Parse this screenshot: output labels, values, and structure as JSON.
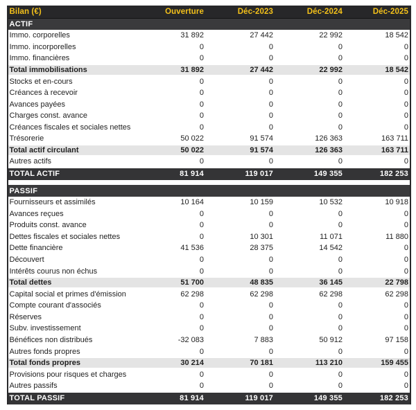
{
  "table": {
    "title": "Bilan (€)",
    "columns": [
      "Ouverture",
      "Déc-2023",
      "Déc-2024",
      "Déc-2025"
    ],
    "colors": {
      "header_bg": "#272729",
      "header_text": "#f3c01a",
      "section_bg": "#3a3a3c",
      "subtotal_bg": "#e4e4e4",
      "grand_total_bg": "#343436",
      "body_text": "#212121"
    },
    "sections": [
      {
        "name": "ACTIF",
        "rows": [
          {
            "kind": "data",
            "label": "Immo. corporelles",
            "values": [
              "31 892",
              "27 442",
              "22 992",
              "18 542"
            ]
          },
          {
            "kind": "data",
            "label": "Immo. incorporelles",
            "values": [
              "0",
              "0",
              "0",
              "0"
            ]
          },
          {
            "kind": "data",
            "label": "Immo. financières",
            "values": [
              "0",
              "0",
              "0",
              "0"
            ]
          },
          {
            "kind": "subtotal",
            "label": "Total immobilisations",
            "values": [
              "31 892",
              "27 442",
              "22 992",
              "18 542"
            ]
          },
          {
            "kind": "data",
            "label": "Stocks et en-cours",
            "values": [
              "0",
              "0",
              "0",
              "0"
            ]
          },
          {
            "kind": "data",
            "label": "Créances à recevoir",
            "values": [
              "0",
              "0",
              "0",
              "0"
            ]
          },
          {
            "kind": "data",
            "label": "Avances payées",
            "values": [
              "0",
              "0",
              "0",
              "0"
            ]
          },
          {
            "kind": "data",
            "label": "Charges const. avance",
            "values": [
              "0",
              "0",
              "0",
              "0"
            ]
          },
          {
            "kind": "data",
            "label": "Créances fiscales et sociales nettes",
            "values": [
              "0",
              "0",
              "0",
              "0"
            ]
          },
          {
            "kind": "data",
            "label": "Trésorerie",
            "values": [
              "50 022",
              "91 574",
              "126 363",
              "163 711"
            ]
          },
          {
            "kind": "subtotal",
            "label": "Total actif circulant",
            "values": [
              "50 022",
              "91 574",
              "126 363",
              "163 711"
            ]
          },
          {
            "kind": "data",
            "label": "Autres actifs",
            "values": [
              "0",
              "0",
              "0",
              "0"
            ]
          }
        ],
        "total": {
          "label": "TOTAL ACTIF",
          "values": [
            "81 914",
            "119 017",
            "149 355",
            "182 253"
          ]
        }
      },
      {
        "name": "PASSIF",
        "rows": [
          {
            "kind": "data",
            "label": "Fournisseurs et assimilés",
            "values": [
              "10 164",
              "10 159",
              "10 532",
              "10 918"
            ]
          },
          {
            "kind": "data",
            "label": "Avances reçues",
            "values": [
              "0",
              "0",
              "0",
              "0"
            ]
          },
          {
            "kind": "data",
            "label": "Produits const. avance",
            "values": [
              "0",
              "0",
              "0",
              "0"
            ]
          },
          {
            "kind": "data",
            "label": "Dettes fiscales et sociales nettes",
            "values": [
              "0",
              "10 301",
              "11 071",
              "11 880"
            ]
          },
          {
            "kind": "data",
            "label": "Dette financière",
            "values": [
              "41 536",
              "28 375",
              "14 542",
              "0"
            ]
          },
          {
            "kind": "data",
            "label": "Découvert",
            "values": [
              "0",
              "0",
              "0",
              "0"
            ]
          },
          {
            "kind": "data",
            "label": "Intérêts courus non échus",
            "values": [
              "0",
              "0",
              "0",
              "0"
            ]
          },
          {
            "kind": "subtotal",
            "label": "Total dettes",
            "values": [
              "51 700",
              "48 835",
              "36 145",
              "22 798"
            ]
          },
          {
            "kind": "data",
            "label": "Capital social et primes d'émission",
            "values": [
              "62 298",
              "62 298",
              "62 298",
              "62 298"
            ]
          },
          {
            "kind": "data",
            "label": "Compte courant d'associés",
            "values": [
              "0",
              "0",
              "0",
              "0"
            ]
          },
          {
            "kind": "data",
            "label": "Réserves",
            "values": [
              "0",
              "0",
              "0",
              "0"
            ]
          },
          {
            "kind": "data",
            "label": "Subv. investissement",
            "values": [
              "0",
              "0",
              "0",
              "0"
            ]
          },
          {
            "kind": "data",
            "label": "Bénéfices non distribués",
            "values": [
              "-32 083",
              "7 883",
              "50 912",
              "97 158"
            ]
          },
          {
            "kind": "data",
            "label": "Autres fonds propres",
            "values": [
              "0",
              "0",
              "0",
              "0"
            ]
          },
          {
            "kind": "subtotal",
            "label": "Total fonds propres",
            "values": [
              "30 214",
              "70 181",
              "113 210",
              "159 455"
            ]
          },
          {
            "kind": "data",
            "label": "Provisions pour risques et charges",
            "values": [
              "0",
              "0",
              "0",
              "0"
            ]
          },
          {
            "kind": "data",
            "label": "Autres passifs",
            "values": [
              "0",
              "0",
              "0",
              "0"
            ]
          }
        ],
        "total": {
          "label": "TOTAL PASSIF",
          "values": [
            "81 914",
            "119 017",
            "149 355",
            "182 253"
          ]
        }
      }
    ]
  }
}
